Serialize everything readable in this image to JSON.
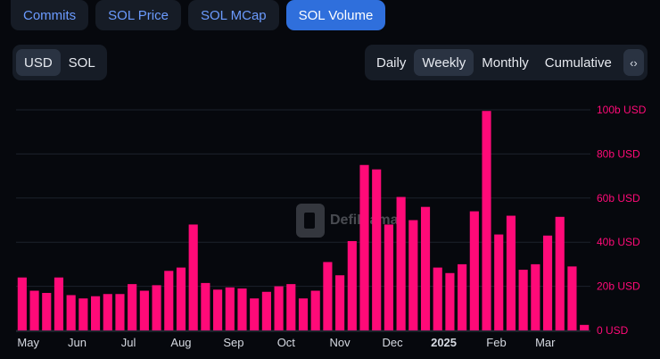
{
  "tabs": [
    {
      "label": "Commits",
      "active": false
    },
    {
      "label": "SOL Price",
      "active": false
    },
    {
      "label": "SOL MCap",
      "active": false
    },
    {
      "label": "SOL Volume",
      "active": true
    }
  ],
  "currency": {
    "options": [
      "USD",
      "SOL"
    ],
    "selected": "USD"
  },
  "period": {
    "options": [
      "Daily",
      "Weekly",
      "Monthly",
      "Cumulative"
    ],
    "selected": "Weekly"
  },
  "embed_icon": "code-icon",
  "watermark": "DefiLlama",
  "colors": {
    "bar": "#ff0a78",
    "axis_label": "#ff0a78",
    "background": "#06080d",
    "accent": "#2f6fdc"
  },
  "chart_data": {
    "type": "bar",
    "title": "",
    "xlabel": "",
    "ylabel": "",
    "y_unit": "USD (billions)",
    "ylim": [
      0,
      100
    ],
    "y_ticks": [
      {
        "value": 0,
        "label": "0 USD"
      },
      {
        "value": 20,
        "label": "20b USD"
      },
      {
        "value": 40,
        "label": "40b USD"
      },
      {
        "value": 60,
        "label": "60b USD"
      },
      {
        "value": 80,
        "label": "80b USD"
      },
      {
        "value": 100,
        "label": "100b USD"
      }
    ],
    "x_ticks": [
      {
        "index": 0.5,
        "label": "May",
        "bold": false
      },
      {
        "index": 4.5,
        "label": "Jun",
        "bold": false
      },
      {
        "index": 8.7,
        "label": "Jul",
        "bold": false
      },
      {
        "index": 13.0,
        "label": "Aug",
        "bold": false
      },
      {
        "index": 17.3,
        "label": "Sep",
        "bold": false
      },
      {
        "index": 21.6,
        "label": "Oct",
        "bold": false
      },
      {
        "index": 26.0,
        "label": "Nov",
        "bold": false
      },
      {
        "index": 30.3,
        "label": "Dec",
        "bold": false
      },
      {
        "index": 34.5,
        "label": "2025",
        "bold": true
      },
      {
        "index": 38.8,
        "label": "Feb",
        "bold": false
      },
      {
        "index": 42.8,
        "label": "Mar",
        "bold": false
      }
    ],
    "grid": true,
    "values": [
      24,
      18,
      17,
      24,
      16,
      14.5,
      15.5,
      16.5,
      16.5,
      21,
      18,
      20.5,
      27,
      28.5,
      48,
      21.5,
      18.5,
      19.5,
      19,
      14.5,
      17.5,
      20,
      21,
      14.5,
      18,
      31,
      25,
      40.5,
      75,
      73,
      48,
      60.5,
      50,
      56,
      28.5,
      26,
      30,
      54,
      99.5,
      43.5,
      52,
      27.5,
      30,
      43,
      51.5,
      29,
      2.5
    ]
  }
}
